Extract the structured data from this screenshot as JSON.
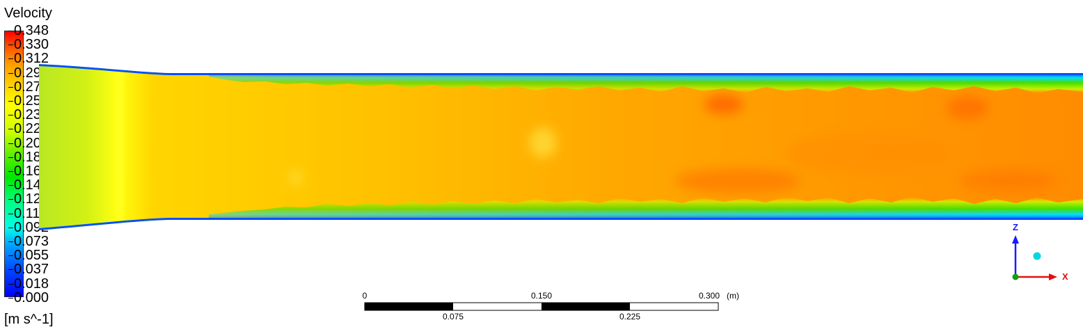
{
  "legend": {
    "title": "Velocity",
    "units": "[m s^-1]",
    "ticks": [
      "0.348",
      "0.330",
      "0.312",
      "0.293",
      "0.275",
      "0.257",
      "0.238",
      "0.220",
      "0.202",
      "0.183",
      "0.165",
      "0.147",
      "0.128",
      "0.110",
      "0.092",
      "0.073",
      "0.055",
      "0.037",
      "0.018",
      "0.000"
    ]
  },
  "scale_bar": {
    "labels_top": [
      "0",
      "0.150",
      "0.300"
    ],
    "labels_bottom": [
      "0.075",
      "0.225"
    ],
    "unit": "(m)"
  },
  "axes": {
    "z_label": "Z",
    "x_label": "X",
    "z_color": "#1a1aff",
    "x_color": "#e01010",
    "y_color": "#10a010"
  },
  "colors": {
    "high": "#ff0000",
    "core": "#ffb000",
    "inlet": "#c8ef20",
    "shear_layer": "#44e000",
    "wall": "#0040ff"
  }
}
